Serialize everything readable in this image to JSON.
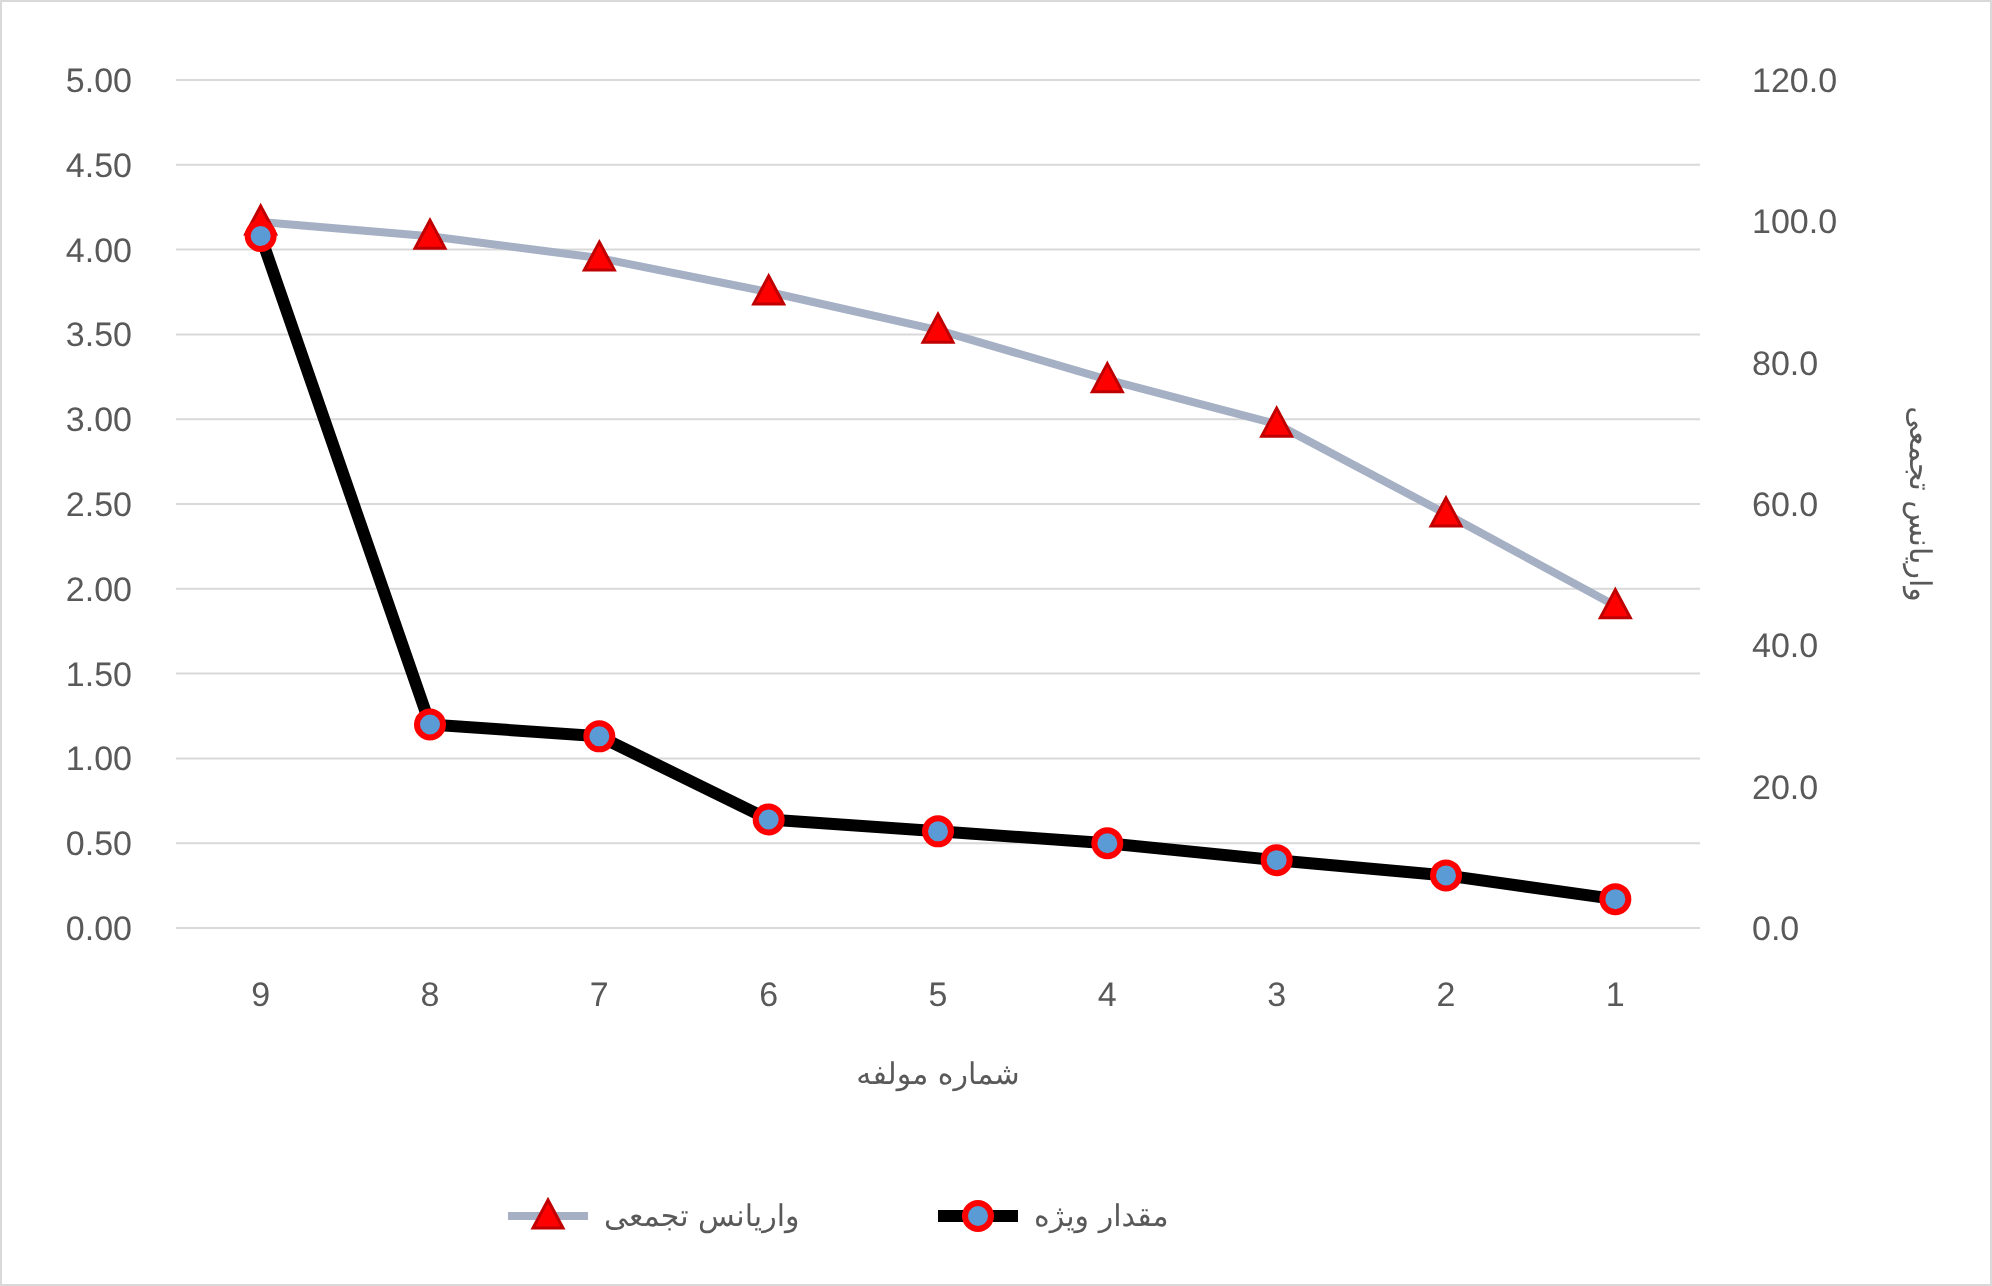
{
  "chart_data": {
    "type": "line",
    "xlabel": "شماره مولفه",
    "y2label": "واریانس تجمعی",
    "categories": [
      "9",
      "8",
      "7",
      "6",
      "5",
      "4",
      "3",
      "2",
      "1"
    ],
    "series": [
      {
        "name": "مقدار ویژه",
        "color": "#000000",
        "marker": "circle",
        "values": [
          4.08,
          1.2,
          1.13,
          0.64,
          0.57,
          0.5,
          0.4,
          0.31,
          0.17
        ]
      },
      {
        "name": "واریانس تجمعی",
        "color": "#a5b0c4",
        "marker": "triangle",
        "axis": "y2",
        "values": [
          99.9,
          97.9,
          94.8,
          90.0,
          84.6,
          77.6,
          71.3,
          58.6,
          45.6
        ]
      }
    ],
    "ylim": [
      0,
      5
    ],
    "yticks": [
      {
        "value": 0,
        "label": "0.00"
      },
      {
        "value": 0.5,
        "label": "0.50"
      },
      {
        "value": 1,
        "label": "1.00"
      },
      {
        "value": 1.5,
        "label": "1.50"
      },
      {
        "value": 2,
        "label": "2.00"
      },
      {
        "value": 2.5,
        "label": "2.50"
      },
      {
        "value": 3,
        "label": "3.00"
      },
      {
        "value": 3.5,
        "label": "3.50"
      },
      {
        "value": 4,
        "label": "4.00"
      },
      {
        "value": 4.5,
        "label": "4.50"
      },
      {
        "value": 5,
        "label": "5.00"
      }
    ],
    "y2lim": [
      0,
      120
    ],
    "y2ticks": [
      {
        "value": 0,
        "label": "0.0"
      },
      {
        "value": 20,
        "label": "20.0"
      },
      {
        "value": 40,
        "label": "40.0"
      },
      {
        "value": 60,
        "label": "60.0"
      },
      {
        "value": 80,
        "label": "80.0"
      },
      {
        "value": 100,
        "label": "100.0"
      },
      {
        "value": 120,
        "label": "120.0"
      }
    ],
    "grid": "y",
    "legend": "bottom"
  }
}
